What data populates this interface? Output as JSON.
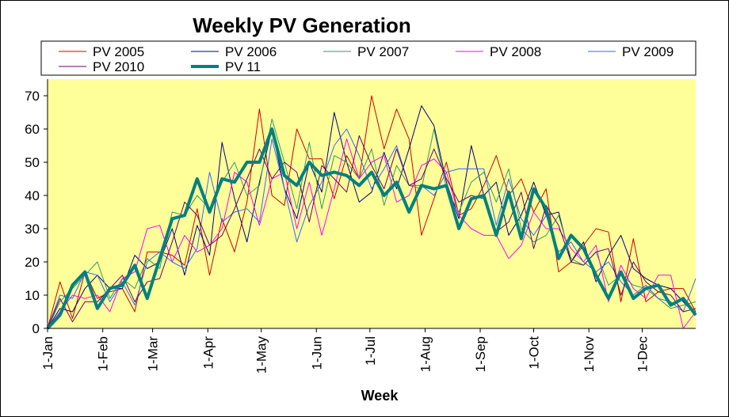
{
  "chart_data": {
    "type": "line",
    "title": "Weekly PV Generation",
    "xlabel": "Week",
    "ylabel": "",
    "ylim": [
      0,
      75
    ],
    "yticks": [
      0,
      10,
      20,
      30,
      40,
      50,
      60,
      70
    ],
    "xlim": [
      1,
      53
    ],
    "xticks": [
      {
        "label": "1-Jan",
        "week": 1
      },
      {
        "label": "1-Feb",
        "week": 5.43
      },
      {
        "label": "1-Mar",
        "week": 9.43
      },
      {
        "label": "1-Apr",
        "week": 13.86
      },
      {
        "label": "1-May",
        "week": 18.14
      },
      {
        "label": "1-Jun",
        "week": 22.57
      },
      {
        "label": "1-Jul",
        "week": 26.86
      },
      {
        "label": "1-Aug",
        "week": 31.29
      },
      {
        "label": "1-Sep",
        "week": 35.71
      },
      {
        "label": "1-Oct",
        "week": 40.0
      },
      {
        "label": "1-Nov",
        "week": 44.43
      },
      {
        "label": "1-Dec",
        "week": 48.71
      }
    ],
    "plot_background": "#ffff99",
    "legend_position": "top",
    "series": [
      {
        "name": "PV 2005",
        "color": "#cc0000",
        "width": 1,
        "values": [
          0,
          14,
          3,
          17,
          9,
          11,
          12,
          5,
          23,
          23,
          22,
          19,
          36,
          16,
          33,
          23,
          38,
          66,
          40,
          37,
          60,
          51,
          51,
          39,
          52,
          45,
          70,
          54,
          66,
          57,
          28,
          39,
          50,
          34,
          36,
          43,
          52,
          40,
          45,
          35,
          42,
          17,
          20,
          25,
          30,
          29,
          8,
          27,
          8,
          11,
          12,
          12,
          5
        ]
      },
      {
        "name": "PV 2006",
        "color": "#000080",
        "width": 1,
        "values": [
          0,
          6,
          5,
          12,
          16,
          12,
          12,
          22,
          18,
          20,
          30,
          16,
          31,
          22,
          56,
          39,
          26,
          44,
          60,
          42,
          33,
          50,
          41,
          65,
          50,
          38,
          41,
          53,
          42,
          54,
          67,
          61,
          44,
          33,
          55,
          40,
          44,
          28,
          34,
          44,
          34,
          35,
          20,
          26,
          14,
          22,
          28,
          18,
          15,
          13,
          12,
          8,
          4
        ]
      },
      {
        "name": "PV 2007",
        "color": "#339966",
        "width": 1,
        "values": [
          0,
          8,
          12,
          16,
          20,
          9,
          15,
          12,
          21,
          18,
          35,
          34,
          40,
          36,
          44,
          50,
          40,
          43,
          63,
          50,
          36,
          56,
          36,
          52,
          50,
          45,
          54,
          37,
          49,
          43,
          42,
          60,
          42,
          35,
          44,
          47,
          38,
          48,
          30,
          26,
          28,
          34,
          21,
          19,
          23,
          13,
          16,
          13,
          12,
          9,
          6,
          7,
          8
        ]
      },
      {
        "name": "PV 2008",
        "color": "#ff00ff",
        "width": 1,
        "values": [
          0,
          5,
          10,
          9,
          10,
          5,
          15,
          17,
          30,
          31,
          20,
          28,
          23,
          25,
          30,
          47,
          44,
          31,
          45,
          47,
          30,
          44,
          28,
          42,
          57,
          45,
          50,
          52,
          38,
          40,
          49,
          51,
          47,
          34,
          30,
          28,
          28,
          21,
          25,
          35,
          30,
          30,
          24,
          20,
          25,
          8,
          19,
          12,
          9,
          16,
          16,
          0,
          5
        ]
      },
      {
        "name": "PV 2009",
        "color": "#3366ff",
        "width": 1,
        "values": [
          0,
          10,
          9,
          17,
          16,
          8,
          14,
          7,
          20,
          23,
          20,
          18,
          24,
          47,
          32,
          35,
          36,
          32,
          57,
          42,
          26,
          37,
          44,
          55,
          60,
          52,
          42,
          48,
          55,
          43,
          43,
          40,
          47,
          48,
          48,
          48,
          31,
          45,
          33,
          28,
          34,
          23,
          26,
          20,
          17,
          20,
          14,
          10,
          13,
          9,
          8,
          5,
          15
        ]
      },
      {
        "name": "PV 2010",
        "color": "#660066",
        "width": 1,
        "values": [
          0,
          9,
          2,
          8,
          8,
          12,
          16,
          8,
          14,
          15,
          26,
          38,
          34,
          25,
          28,
          36,
          45,
          54,
          45,
          50,
          47,
          32,
          49,
          45,
          41,
          58,
          49,
          42,
          54,
          43,
          45,
          54,
          45,
          38,
          40,
          39,
          29,
          32,
          41,
          24,
          37,
          31,
          20,
          19,
          23,
          24,
          10,
          20,
          14,
          11,
          10,
          5,
          6
        ]
      },
      {
        "name": "PV 11",
        "color": "#008080",
        "width": 4,
        "values": [
          0,
          4,
          13,
          17,
          6,
          12,
          13,
          19,
          9,
          21,
          33,
          34,
          45,
          35,
          45,
          44,
          50,
          50,
          60,
          46,
          43,
          50,
          46,
          47,
          46,
          43,
          47,
          40,
          44,
          35,
          43,
          42,
          43,
          30,
          39,
          40,
          28,
          41,
          27,
          42,
          36,
          21,
          28,
          24,
          16,
          9,
          17,
          9,
          12,
          13,
          7,
          9,
          4
        ]
      }
    ]
  }
}
